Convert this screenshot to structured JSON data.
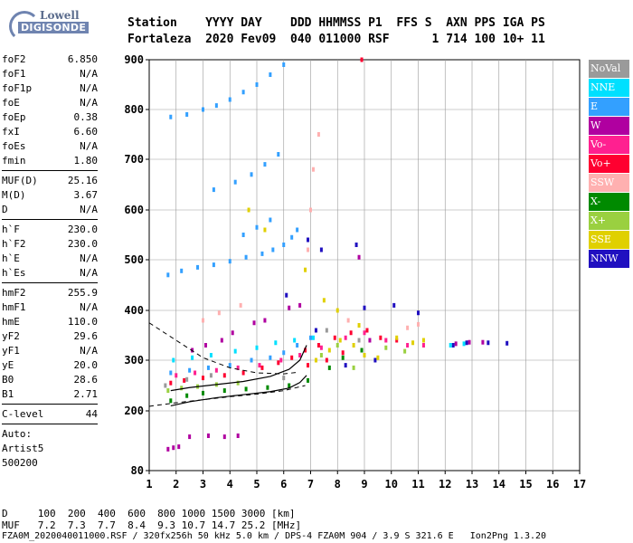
{
  "logo": {
    "brand": "Lowell",
    "product": "DIGISONDE"
  },
  "header": {
    "line1": "Station    YYYY DAY    DDD HHMMSS P1  FFS S  AXN PPS IGA PS",
    "line2": "Fortaleza  2020 Fev09  040 011000 RSF      1 714 100 10+ 11"
  },
  "params": {
    "group1": [
      {
        "name": "foF2",
        "value": "6.850"
      },
      {
        "name": "foF1",
        "value": "N/A"
      },
      {
        "name": "foF1p",
        "value": "N/A"
      },
      {
        "name": "foE",
        "value": "N/A"
      },
      {
        "name": "foEp",
        "value": "0.38"
      },
      {
        "name": "fxI",
        "value": "6.60"
      },
      {
        "name": "foEs",
        "value": "N/A"
      },
      {
        "name": "fmin",
        "value": "1.80"
      }
    ],
    "group2": [
      {
        "name": "MUF(D)",
        "value": "25.16"
      },
      {
        "name": "M(D)",
        "value": "3.67"
      },
      {
        "name": "D",
        "value": "N/A"
      }
    ],
    "group3": [
      {
        "name": "h`F",
        "value": "230.0"
      },
      {
        "name": "h`F2",
        "value": "230.0"
      },
      {
        "name": "h`E",
        "value": "N/A"
      },
      {
        "name": "h`Es",
        "value": "N/A"
      }
    ],
    "group4": [
      {
        "name": "hmF2",
        "value": "255.9"
      },
      {
        "name": "hmF1",
        "value": "N/A"
      },
      {
        "name": "hmE",
        "value": "110.0"
      },
      {
        "name": "yF2",
        "value": "29.6"
      },
      {
        "name": "yF1",
        "value": "N/A"
      },
      {
        "name": "yE",
        "value": "20.0"
      },
      {
        "name": "B0",
        "value": "28.6"
      },
      {
        "name": "B1",
        "value": "2.71"
      }
    ],
    "group5": [
      {
        "name": "C-level",
        "value": "44"
      }
    ]
  },
  "auto": {
    "line1": "Auto:",
    "line2": "Artist5",
    "line3": "500200"
  },
  "legend": [
    {
      "label": "NoVal",
      "color": "#9a9a9a"
    },
    {
      "label": "NNE",
      "color": "#00e0ff"
    },
    {
      "label": "E",
      "color": "#33a0ff"
    },
    {
      "label": "W",
      "color": "#b000a0"
    },
    {
      "label": "Vo-",
      "color": "#ff2090"
    },
    {
      "label": "Vo+",
      "color": "#ff0030"
    },
    {
      "label": "SSW",
      "color": "#ffb0b0"
    },
    {
      "label": "X-",
      "color": "#008a00"
    },
    {
      "label": "X+",
      "color": "#9ad040"
    },
    {
      "label": "SSE",
      "color": "#e0d000"
    },
    {
      "label": "NNW",
      "color": "#2010c0"
    }
  ],
  "bottom": {
    "d_line": "D     100  200  400  600  800 1000 1500 3000 [km]",
    "muf_line": "MUF   7.2  7.3  7.7  8.4  9.3 10.7 14.7 25.2 [MHz]",
    "footer": "FZA0M_2020040011000.RSF / 320fx256h 50 kHz 5.0 km / DPS-4 FZA0M 904 / 3.9 S 321.6 E   Ion2Png 1.3.20"
  },
  "chart_data": {
    "type": "scatter",
    "xlim": [
      1,
      17
    ],
    "ylim": [
      80,
      900
    ],
    "x_ticks": [
      "1",
      "2",
      "3",
      "4",
      "5",
      "6",
      "7",
      "8",
      "9",
      "10",
      "11",
      "12",
      "13",
      "14",
      "15",
      "16",
      "17"
    ],
    "y_ticks": [
      "80",
      "200",
      "300",
      "400",
      "500",
      "600",
      "700",
      "800",
      "900"
    ],
    "y_tick_values": [
      80,
      200,
      300,
      400,
      500,
      600,
      700,
      800,
      900
    ],
    "grid": true,
    "legend_position": "right",
    "series": [
      {
        "legend": "E",
        "color": "#33a0ff",
        "points": [
          [
            1.7,
            470
          ],
          [
            2.2,
            478
          ],
          [
            2.8,
            485
          ],
          [
            3.4,
            490
          ],
          [
            4.0,
            497
          ],
          [
            4.6,
            505
          ],
          [
            5.2,
            512
          ],
          [
            5.6,
            520
          ],
          [
            6.0,
            530
          ],
          [
            6.3,
            545
          ],
          [
            6.5,
            560
          ],
          [
            1.8,
            785
          ],
          [
            2.4,
            790
          ],
          [
            3.0,
            800
          ],
          [
            3.5,
            808
          ],
          [
            4.0,
            820
          ],
          [
            4.5,
            835
          ],
          [
            5.0,
            850
          ],
          [
            5.5,
            870
          ],
          [
            6.0,
            890
          ],
          [
            3.4,
            640
          ],
          [
            4.2,
            655
          ],
          [
            4.8,
            670
          ],
          [
            5.3,
            690
          ],
          [
            5.8,
            710
          ],
          [
            4.5,
            550
          ],
          [
            5.0,
            565
          ],
          [
            5.5,
            580
          ],
          [
            1.8,
            275
          ],
          [
            2.5,
            280
          ],
          [
            3.2,
            285
          ],
          [
            4.0,
            290
          ],
          [
            4.8,
            300
          ],
          [
            5.5,
            305
          ],
          [
            6.0,
            315
          ],
          [
            6.5,
            330
          ],
          [
            7.0,
            345
          ]
        ]
      },
      {
        "legend": "Vo+",
        "color": "#ff0030",
        "points": [
          [
            1.8,
            255
          ],
          [
            2.3,
            260
          ],
          [
            3.0,
            265
          ],
          [
            3.8,
            270
          ],
          [
            4.5,
            275
          ],
          [
            5.2,
            285
          ],
          [
            5.8,
            295
          ],
          [
            6.3,
            305
          ],
          [
            6.8,
            320
          ],
          [
            7.3,
            330
          ],
          [
            7.9,
            345
          ],
          [
            8.5,
            355
          ],
          [
            9.1,
            360
          ],
          [
            9.6,
            345
          ],
          [
            10.2,
            340
          ],
          [
            8.9,
            900
          ],
          [
            6.9,
            290
          ],
          [
            7.6,
            300
          ],
          [
            8.2,
            315
          ]
        ]
      },
      {
        "legend": "W",
        "color": "#b000a0",
        "points": [
          [
            1.7,
            123
          ],
          [
            1.9,
            126
          ],
          [
            2.1,
            128
          ],
          [
            2.5,
            148
          ],
          [
            3.2,
            150
          ],
          [
            3.8,
            148
          ],
          [
            4.3,
            150
          ],
          [
            4.9,
            375
          ],
          [
            5.3,
            380
          ],
          [
            6.2,
            405
          ],
          [
            6.6,
            410
          ],
          [
            2.6,
            320
          ],
          [
            3.1,
            330
          ],
          [
            3.7,
            340
          ],
          [
            4.1,
            355
          ],
          [
            12.4,
            333
          ],
          [
            12.9,
            336
          ],
          [
            13.4,
            336
          ],
          [
            8.8,
            505
          ],
          [
            9.2,
            340
          ]
        ]
      },
      {
        "legend": "NNW",
        "color": "#2010c0",
        "points": [
          [
            7.4,
            520
          ],
          [
            8.7,
            530
          ],
          [
            9.0,
            405
          ],
          [
            10.1,
            410
          ],
          [
            11.0,
            395
          ],
          [
            12.3,
            330
          ],
          [
            12.8,
            335
          ],
          [
            13.6,
            335
          ],
          [
            14.3,
            334
          ],
          [
            7.2,
            360
          ],
          [
            8.3,
            290
          ],
          [
            9.4,
            300
          ],
          [
            6.9,
            540
          ],
          [
            6.1,
            430
          ]
        ]
      },
      {
        "legend": "SSE",
        "color": "#e0d000",
        "points": [
          [
            7.2,
            300
          ],
          [
            7.7,
            320
          ],
          [
            8.1,
            340
          ],
          [
            8.6,
            330
          ],
          [
            9.0,
            310
          ],
          [
            9.5,
            305
          ],
          [
            10.2,
            345
          ],
          [
            10.8,
            335
          ],
          [
            11.2,
            340
          ],
          [
            7.5,
            420
          ],
          [
            8.0,
            400
          ],
          [
            8.8,
            370
          ],
          [
            6.8,
            480
          ],
          [
            5.3,
            560
          ],
          [
            4.7,
            600
          ]
        ]
      },
      {
        "legend": "SSW",
        "color": "#ffb0b0",
        "points": [
          [
            6.9,
            520
          ],
          [
            7.0,
            600
          ],
          [
            7.1,
            680
          ],
          [
            7.3,
            750
          ],
          [
            10.6,
            365
          ],
          [
            11.0,
            372
          ],
          [
            9.8,
            340
          ],
          [
            8.4,
            380
          ],
          [
            3.0,
            380
          ],
          [
            3.6,
            395
          ],
          [
            4.4,
            410
          ]
        ]
      },
      {
        "legend": "X-",
        "color": "#008a00",
        "points": [
          [
            1.8,
            220
          ],
          [
            2.4,
            230
          ],
          [
            3.0,
            235
          ],
          [
            3.8,
            240
          ],
          [
            4.6,
            243
          ],
          [
            5.4,
            246
          ],
          [
            6.2,
            250
          ],
          [
            6.9,
            260
          ],
          [
            8.2,
            305
          ],
          [
            8.9,
            320
          ],
          [
            7.7,
            285
          ]
        ]
      },
      {
        "legend": "X+",
        "color": "#9ad040",
        "points": [
          [
            1.7,
            240
          ],
          [
            2.2,
            245
          ],
          [
            2.8,
            248
          ],
          [
            3.5,
            252
          ],
          [
            4.3,
            255
          ],
          [
            7.4,
            310
          ],
          [
            8.0,
            330
          ],
          [
            9.8,
            325
          ],
          [
            10.5,
            318
          ],
          [
            8.6,
            285
          ]
        ]
      },
      {
        "legend": "NNE",
        "color": "#00e0ff",
        "points": [
          [
            1.9,
            300
          ],
          [
            2.6,
            305
          ],
          [
            3.3,
            310
          ],
          [
            4.2,
            318
          ],
          [
            5.0,
            325
          ],
          [
            5.7,
            335
          ],
          [
            6.4,
            340
          ],
          [
            7.1,
            345
          ],
          [
            12.2,
            330
          ],
          [
            12.7,
            333
          ]
        ]
      },
      {
        "legend": "Vo-",
        "color": "#ff2090",
        "points": [
          [
            2.0,
            270
          ],
          [
            2.7,
            275
          ],
          [
            3.5,
            280
          ],
          [
            4.3,
            285
          ],
          [
            5.1,
            290
          ],
          [
            5.9,
            300
          ],
          [
            6.6,
            310
          ],
          [
            7.4,
            325
          ],
          [
            8.3,
            345
          ],
          [
            9.0,
            355
          ],
          [
            9.8,
            340
          ],
          [
            10.6,
            330
          ],
          [
            11.2,
            330
          ]
        ]
      },
      {
        "legend": "NoVal",
        "color": "#9a9a9a",
        "points": [
          [
            1.6,
            250
          ],
          [
            2.4,
            262
          ],
          [
            3.3,
            270
          ],
          [
            6.0,
            265
          ],
          [
            7.6,
            360
          ],
          [
            8.8,
            340
          ]
        ]
      }
    ],
    "profile_curve": {
      "color": "#000000",
      "points": [
        [
          1.8,
          210
        ],
        [
          2.5,
          218
        ],
        [
          3.5,
          226
        ],
        [
          4.5,
          232
        ],
        [
          5.5,
          238
        ],
        [
          6.2,
          245
        ],
        [
          6.6,
          256
        ],
        [
          6.85,
          270
        ]
      ]
    },
    "dashed_curves": [
      {
        "color": "#000000",
        "points": [
          [
            1.0,
            375
          ],
          [
            2.0,
            340
          ],
          [
            3.0,
            305
          ],
          [
            4.0,
            285
          ],
          [
            5.0,
            275
          ],
          [
            6.0,
            273
          ],
          [
            6.5,
            276
          ]
        ]
      },
      {
        "color": "#000000",
        "points": [
          [
            1.0,
            209
          ],
          [
            2.0,
            216
          ],
          [
            3.0,
            222
          ],
          [
            4.0,
            228
          ],
          [
            5.0,
            233
          ],
          [
            6.0,
            240
          ],
          [
            6.8,
            250
          ]
        ]
      }
    ],
    "trace_curve": {
      "color": "#000000",
      "points": [
        [
          1.8,
          240
        ],
        [
          2.5,
          246
        ],
        [
          3.5,
          252
        ],
        [
          4.5,
          258
        ],
        [
          5.5,
          268
        ],
        [
          6.2,
          282
        ],
        [
          6.6,
          300
        ],
        [
          6.85,
          330
        ]
      ]
    }
  }
}
